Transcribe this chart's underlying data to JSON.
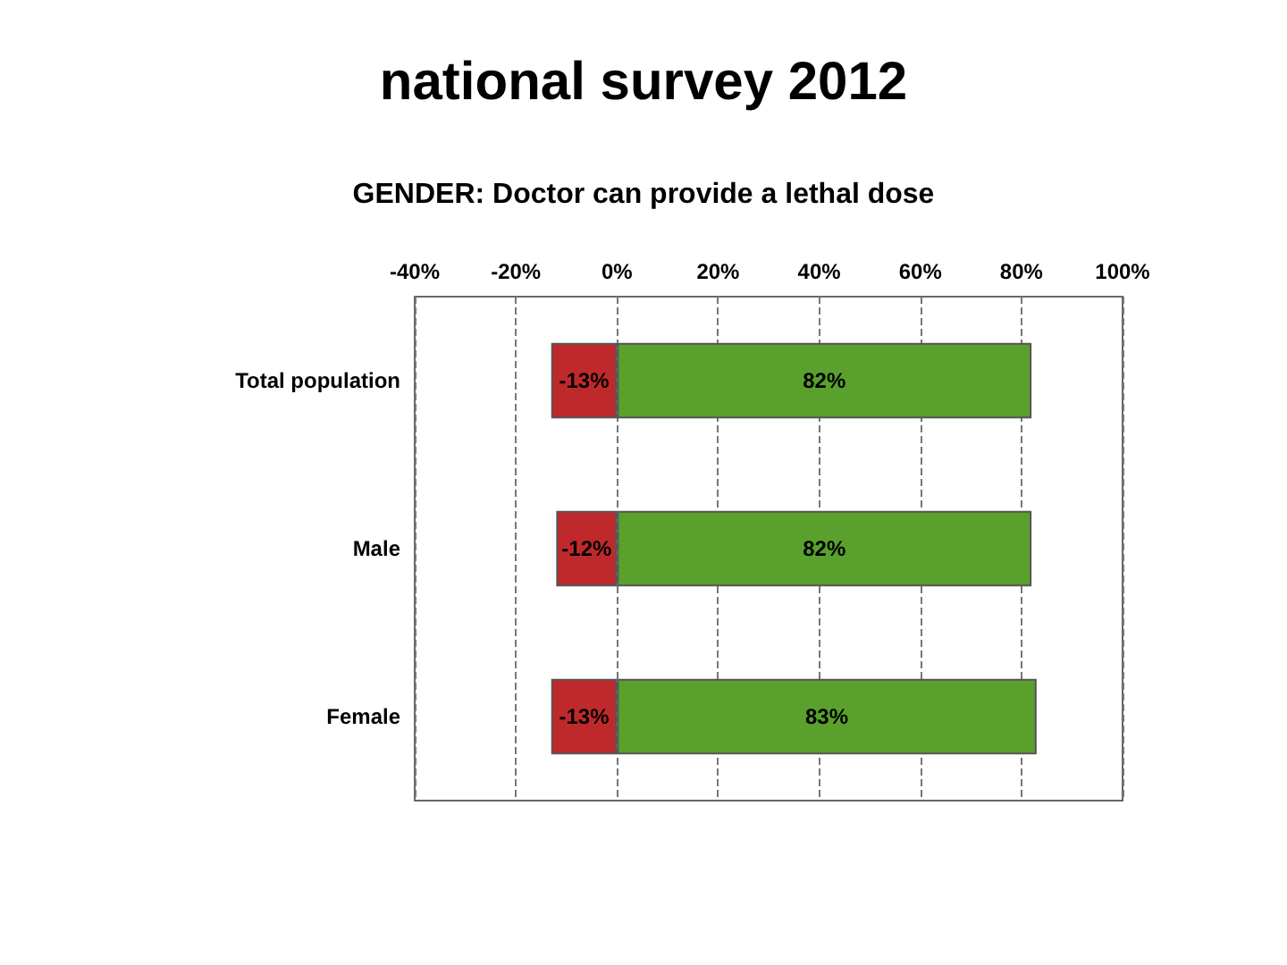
{
  "chart_data": {
    "type": "bar",
    "title": "national survey 2012",
    "subtitle": "GENDER: Doctor can provide a lethal dose",
    "orientation": "horizontal",
    "stacked": true,
    "categories": [
      "Total population",
      "Male",
      "Female"
    ],
    "series": [
      {
        "color": "#c0292b",
        "values": [
          -13,
          -12,
          -13
        ],
        "value_labels": [
          "-13%",
          "-12%",
          "-13%"
        ]
      },
      {
        "color": "#5aa02c",
        "values": [
          82,
          82,
          83
        ],
        "value_labels": [
          "82%",
          "82%",
          "83%"
        ]
      }
    ],
    "xlim": [
      -40,
      100
    ],
    "xticks": [
      {
        "value": -40,
        "label": "-40%"
      },
      {
        "value": -20,
        "label": "-20%"
      },
      {
        "value": 0,
        "label": "0%"
      },
      {
        "value": 20,
        "label": "20%"
      },
      {
        "value": 40,
        "label": "40%"
      },
      {
        "value": 60,
        "label": "60%"
      },
      {
        "value": 80,
        "label": "80%"
      },
      {
        "value": 100,
        "label": "100%"
      }
    ],
    "grid": "x"
  }
}
